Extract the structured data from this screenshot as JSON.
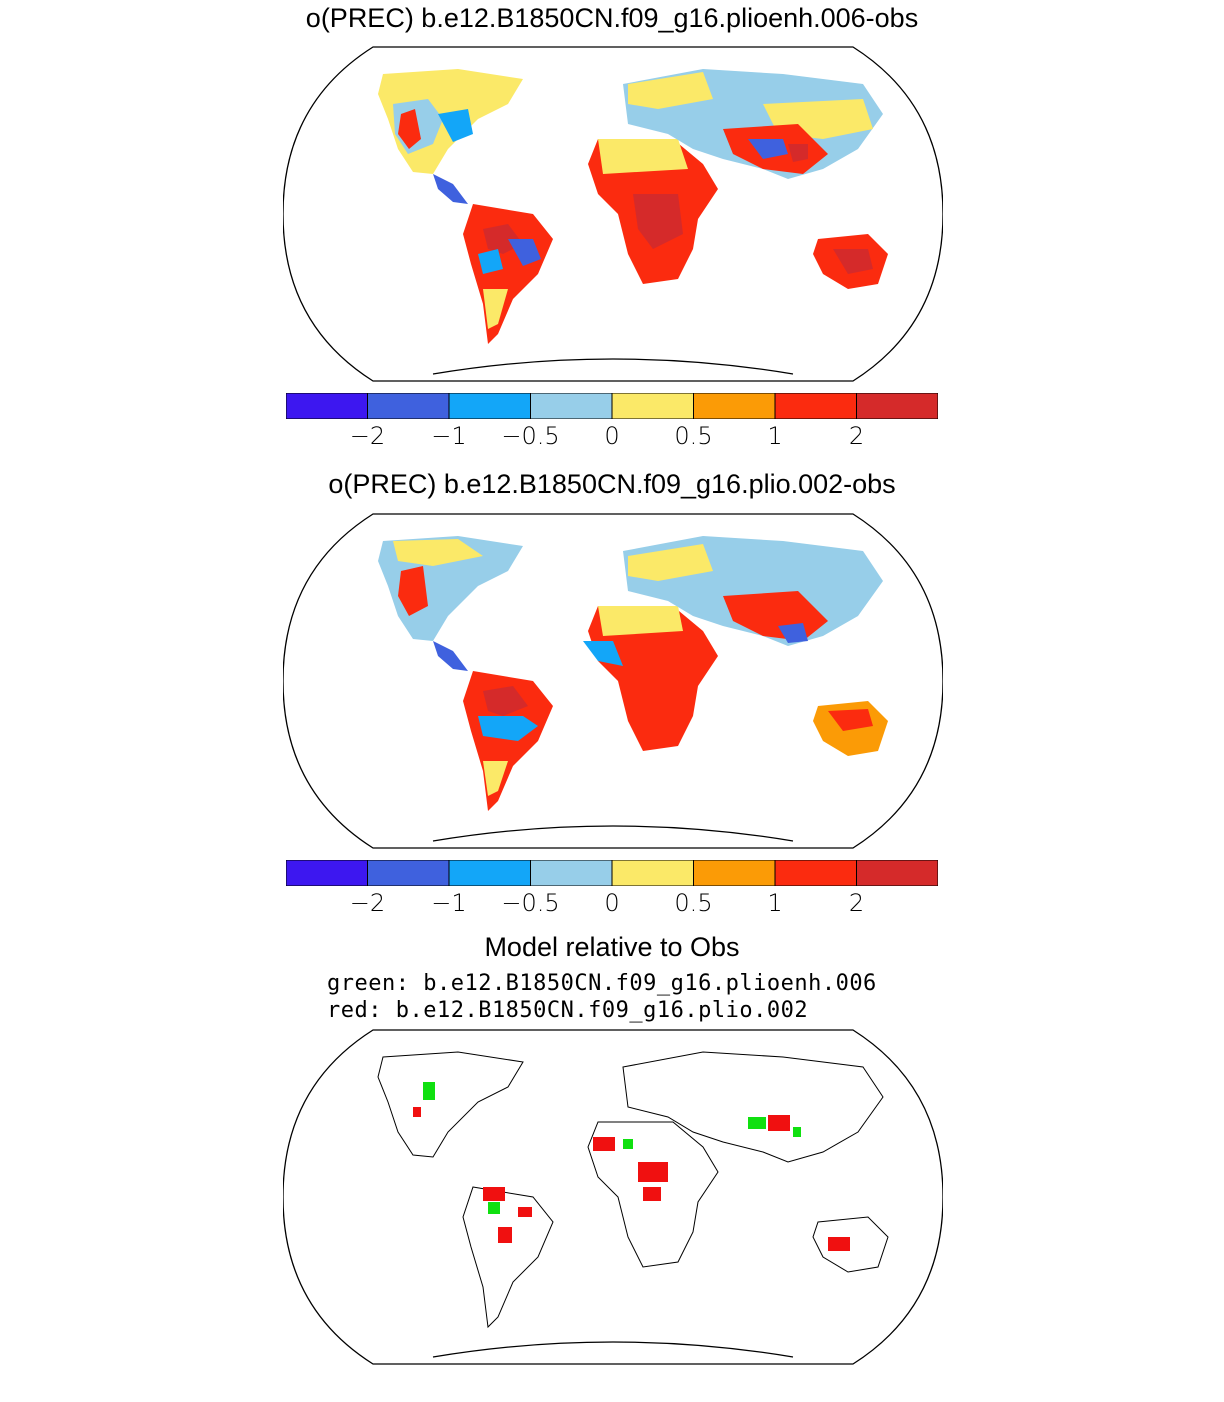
{
  "panels": [
    {
      "title": "o(PREC) b.e12.B1850CN.f09_g16.plioenh.006-obs"
    },
    {
      "title": "o(PREC) b.e12.B1850CN.f09_g16.plio.002-obs"
    }
  ],
  "colorbar": {
    "colors": [
      "#3d17f0",
      "#3f61de",
      "#13a6f8",
      "#97cee9",
      "#fbe968",
      "#fb9b06",
      "#fb2b0f",
      "#d52a2a"
    ],
    "tick_labels": [
      "−2",
      "−1",
      "−0.5",
      "0",
      "0.5",
      "1",
      "2"
    ],
    "tick_values": [
      -2,
      -1,
      -0.5,
      0,
      0.5,
      1,
      2
    ]
  },
  "comparison": {
    "title": "Model relative to Obs",
    "green_line": "green: b.e12.B1850CN.f09_g16.plioenh.006",
    "red_line": "red: b.e12.B1850CN.f09_g16.plio.002",
    "colors": {
      "green": "#10e010",
      "red": "#f01010"
    }
  }
}
